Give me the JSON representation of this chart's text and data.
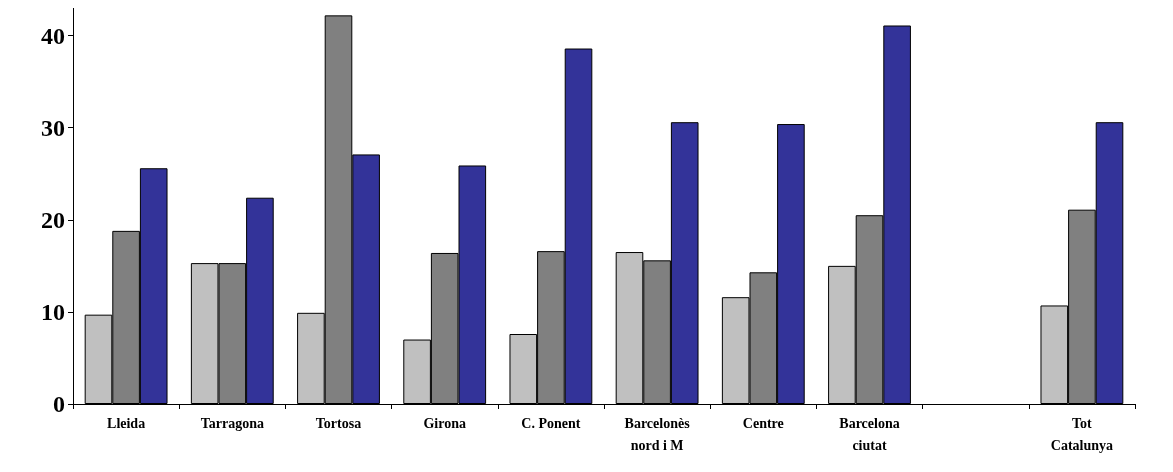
{
  "chart_data": {
    "type": "bar",
    "categories": [
      "Lleida",
      "Tarragona",
      "Tortosa",
      "Girona",
      "C. Ponent",
      "Barcelonès\nnord i M",
      "Centre",
      "Barcelona\nciutat",
      null,
      "Tot\nCatalunya"
    ],
    "series": [
      {
        "color": "#c0c0c0",
        "values": [
          9.7,
          15.3,
          9.9,
          7.0,
          7.6,
          16.5,
          11.6,
          15.0,
          null,
          10.7
        ]
      },
      {
        "color": "#808080",
        "values": [
          18.8,
          15.3,
          42.2,
          16.4,
          16.6,
          15.6,
          14.3,
          20.5,
          null,
          21.1
        ]
      },
      {
        "color": "#333399",
        "values": [
          25.6,
          22.4,
          27.1,
          25.9,
          38.6,
          30.6,
          30.4,
          41.1,
          null,
          30.6
        ]
      }
    ],
    "ylim": [
      0,
      43
    ],
    "yticks": [
      0,
      10,
      20,
      30,
      40
    ],
    "grid": false
  }
}
